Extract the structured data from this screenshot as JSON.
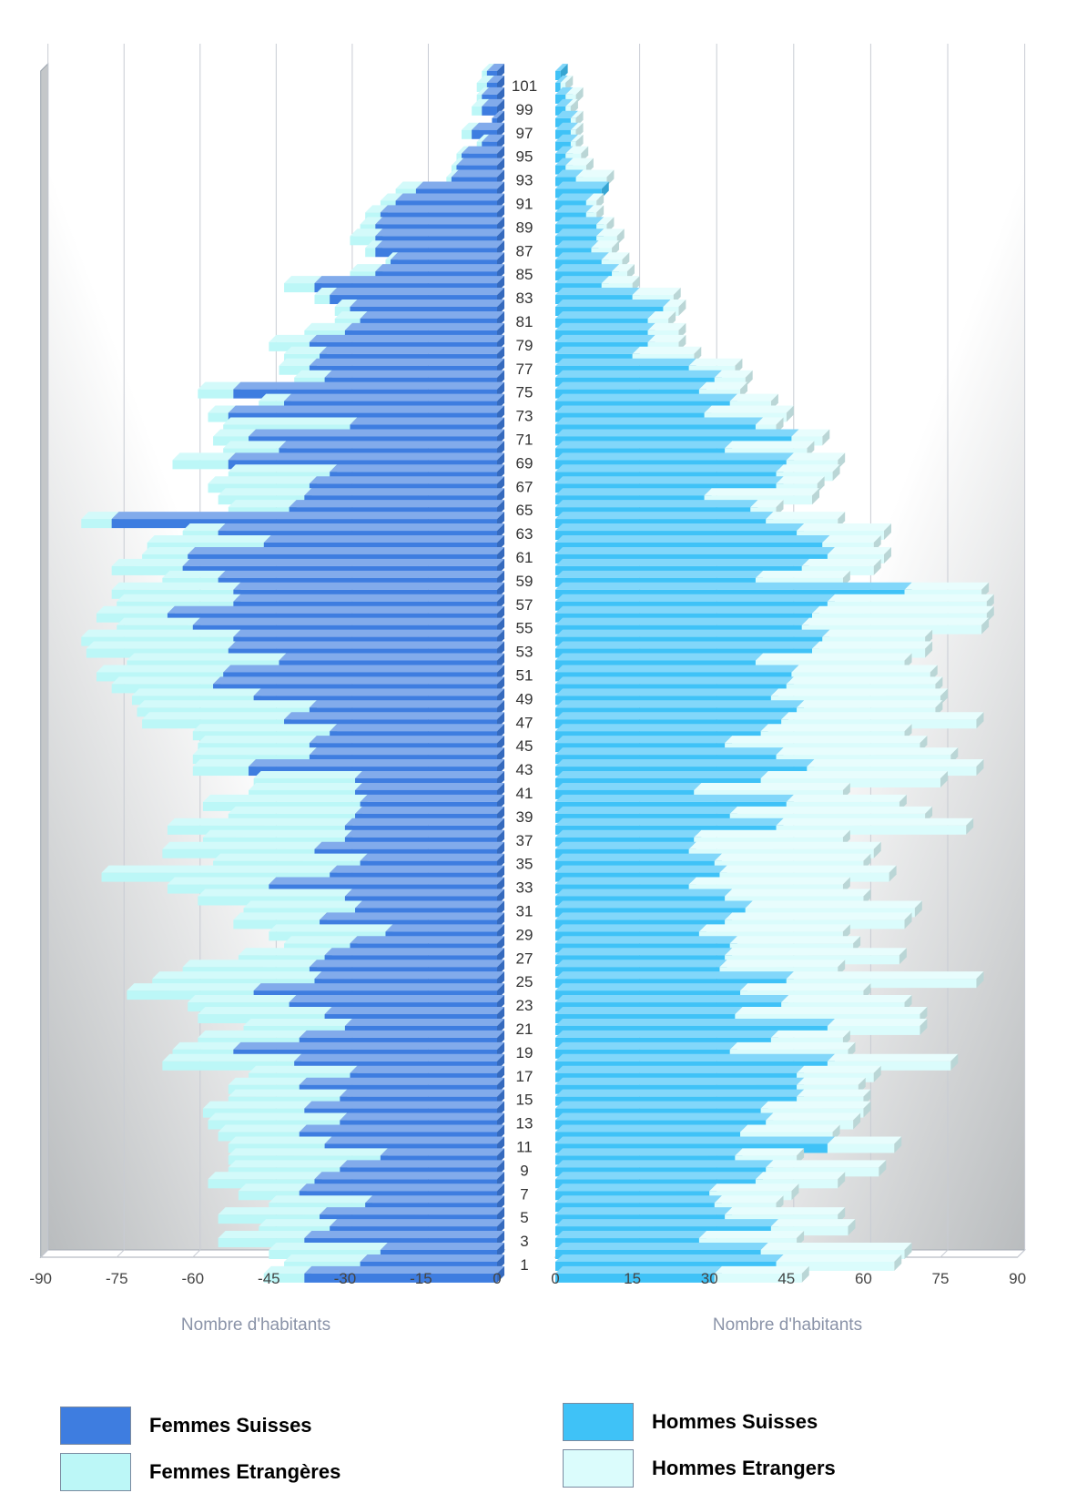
{
  "chart_data": {
    "type": "bar",
    "orientation": "horizontal-pyramid",
    "stacked": true,
    "x_left_ticks": [
      "-90",
      "-75",
      "-60",
      "-45",
      "-30",
      "-15",
      "0"
    ],
    "x_right_ticks": [
      "0",
      "15",
      "30",
      "45",
      "60",
      "75",
      "90"
    ],
    "xlabel": "Nombre d'habitants",
    "xlim": [
      0,
      90
    ],
    "age_labels": [
      "101",
      "99",
      "97",
      "95",
      "93",
      "91",
      "89",
      "87",
      "85",
      "83",
      "81",
      "79",
      "77",
      "75",
      "73",
      "71",
      "69",
      "67",
      "65",
      "63",
      "61",
      "59",
      "57",
      "55",
      "53",
      "51",
      "49",
      "47",
      "45",
      "43",
      "41",
      "39",
      "37",
      "35",
      "33",
      "31",
      "29",
      "27",
      "25",
      "23",
      "21",
      "19",
      "17",
      "15",
      "13",
      "11",
      "9",
      "7",
      "5",
      "3",
      "1"
    ],
    "ages_from_top": [
      102,
      101,
      100,
      99,
      98,
      97,
      96,
      95,
      94,
      93,
      92,
      91,
      90,
      89,
      88,
      87,
      86,
      85,
      84,
      83,
      82,
      81,
      80,
      79,
      78,
      77,
      76,
      75,
      74,
      73,
      72,
      71,
      70,
      69,
      68,
      67,
      66,
      65,
      64,
      63,
      62,
      61,
      60,
      59,
      58,
      57,
      56,
      55,
      54,
      53,
      52,
      51,
      50,
      49,
      48,
      47,
      46,
      45,
      44,
      43,
      42,
      41,
      40,
      39,
      38,
      37,
      36,
      35,
      34,
      33,
      32,
      31,
      30,
      29,
      28,
      27,
      26,
      25,
      24,
      23,
      22,
      21,
      20,
      19,
      18,
      17,
      16,
      15,
      14,
      13,
      12,
      11,
      10,
      9,
      8,
      7,
      6,
      5,
      4,
      3,
      2,
      1,
      0
    ],
    "series": [
      {
        "name": "Femmes Suisses",
        "side": "left",
        "color": "#3e7de0",
        "values": [
          2,
          2,
          3,
          3,
          1,
          5,
          3,
          7,
          8,
          9,
          16,
          20,
          23,
          24,
          24,
          24,
          21,
          24,
          36,
          33,
          29,
          27,
          30,
          37,
          35,
          37,
          34,
          52,
          42,
          53,
          29,
          49,
          43,
          53,
          33,
          37,
          38,
          41,
          76,
          55,
          46,
          61,
          62,
          55,
          52,
          52,
          65,
          60,
          52,
          53,
          43,
          54,
          56,
          48,
          37,
          42,
          33,
          37,
          37,
          49,
          28,
          28,
          27,
          28,
          30,
          30,
          36,
          27,
          33,
          45,
          30,
          28,
          35,
          22,
          29,
          34,
          37,
          36,
          48,
          41,
          34,
          30,
          39,
          52,
          40,
          29,
          39,
          31,
          38,
          31,
          39,
          34,
          23,
          31,
          36,
          39,
          26,
          35,
          33,
          38,
          23,
          27,
          38
        ]
      },
      {
        "name": "Femmes Etrangères",
        "side": "left",
        "color": "#bcf7f7",
        "values": [
          1,
          2,
          1,
          2,
          0,
          2,
          1,
          1,
          1,
          1,
          4,
          3,
          3,
          3,
          5,
          2,
          1,
          5,
          6,
          3,
          3,
          5,
          8,
          8,
          7,
          6,
          6,
          7,
          5,
          4,
          25,
          7,
          11,
          11,
          20,
          20,
          17,
          12,
          6,
          7,
          23,
          9,
          14,
          11,
          24,
          23,
          14,
          15,
          30,
          28,
          30,
          25,
          20,
          24,
          34,
          28,
          27,
          22,
          23,
          11,
          20,
          21,
          31,
          25,
          35,
          28,
          30,
          29,
          45,
          20,
          29,
          22,
          17,
          23,
          13,
          17,
          25,
          32,
          25,
          20,
          25,
          20,
          20,
          12,
          26,
          20,
          14,
          22,
          20,
          26,
          16,
          19,
          30,
          22,
          21,
          12,
          19,
          20,
          14,
          17,
          22,
          15,
          8
        ]
      },
      {
        "name": "Hommes Suisses",
        "side": "right",
        "color": "#3fc2f7",
        "values": [
          1,
          1,
          2,
          2,
          3,
          3,
          3,
          2,
          2,
          4,
          9,
          6,
          6,
          8,
          8,
          7,
          9,
          11,
          9,
          15,
          21,
          18,
          18,
          18,
          15,
          26,
          31,
          28,
          34,
          29,
          39,
          46,
          33,
          45,
          43,
          43,
          29,
          38,
          41,
          47,
          52,
          53,
          48,
          39,
          68,
          53,
          50,
          48,
          52,
          50,
          39,
          46,
          45,
          42,
          47,
          44,
          40,
          33,
          43,
          49,
          40,
          27,
          45,
          34,
          43,
          27,
          26,
          31,
          32,
          26,
          33,
          37,
          33,
          28,
          34,
          33,
          32,
          45,
          36,
          44,
          35,
          53,
          42,
          34,
          53,
          47,
          47,
          47,
          40,
          41,
          36,
          53,
          35,
          41,
          39,
          30,
          31,
          33,
          42,
          28,
          40,
          43,
          31
        ]
      },
      {
        "name": "Hommes Etrangers",
        "side": "right",
        "color": "#dbfcfc",
        "values": [
          0,
          1,
          2,
          1,
          1,
          1,
          1,
          3,
          4,
          6,
          0,
          2,
          2,
          2,
          4,
          4,
          4,
          3,
          6,
          8,
          3,
          4,
          6,
          6,
          12,
          9,
          6,
          8,
          8,
          16,
          4,
          6,
          16,
          10,
          11,
          8,
          21,
          5,
          14,
          17,
          10,
          11,
          14,
          17,
          15,
          31,
          34,
          35,
          20,
          22,
          29,
          27,
          29,
          33,
          27,
          38,
          28,
          38,
          34,
          33,
          35,
          29,
          22,
          38,
          37,
          29,
          36,
          29,
          33,
          30,
          27,
          33,
          35,
          28,
          24,
          34,
          23,
          37,
          24,
          24,
          36,
          18,
          14,
          23,
          24,
          15,
          12,
          13,
          20,
          17,
          18,
          13,
          12,
          22,
          16,
          16,
          12,
          22,
          15,
          19,
          28,
          23,
          17
        ]
      }
    ]
  },
  "legend": [
    {
      "label": "Femmes Suisses",
      "color": "#3e7de0"
    },
    {
      "label": "Femmes Etrangères",
      "color": "#bcf7f7"
    },
    {
      "label": "Hommes Suisses",
      "color": "#3fc2f7"
    },
    {
      "label": "Hommes Etrangers",
      "color": "#dbfcfc"
    }
  ]
}
